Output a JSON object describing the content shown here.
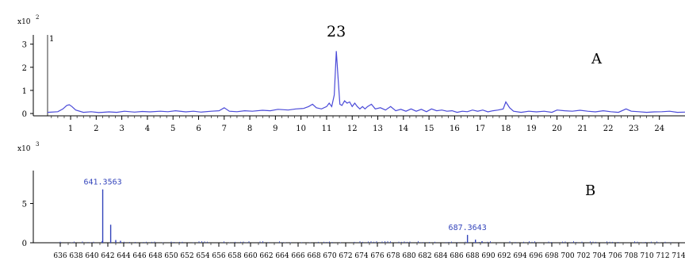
{
  "chart_data": [
    {
      "type": "line",
      "panel_label": "A",
      "peak_annotation": "23",
      "axis_multiplier": {
        "base": "x10",
        "exp": "2"
      },
      "y_ticks": [
        "0",
        "1",
        "2",
        "3"
      ],
      "y_side_tick": "1",
      "x_ticks": [
        "1",
        "2",
        "3",
        "4",
        "5",
        "6",
        "7",
        "8",
        "9",
        "10",
        "11",
        "12",
        "13",
        "14",
        "15",
        "16",
        "17",
        "18",
        "19",
        "20",
        "21",
        "22",
        "23",
        "24"
      ],
      "xlim": [
        0.1,
        25
      ],
      "ylim": [
        -0.1,
        3.4
      ],
      "line_color": "#4a4ad8",
      "series": [
        {
          "x": [
            0.1,
            0.5,
            0.7,
            0.85,
            0.95,
            1.05,
            1.2,
            1.5,
            1.8,
            2.1,
            2.5,
            2.8,
            3.1,
            3.5,
            3.8,
            4.1,
            4.5,
            4.8,
            5.1,
            5.5,
            5.8,
            6.1,
            6.5,
            6.8,
            7.0,
            7.2,
            7.5,
            7.8,
            8.1,
            8.5,
            8.8,
            9.1,
            9.5,
            9.8,
            10.1,
            10.3,
            10.45,
            10.6,
            10.8,
            11.0,
            11.1,
            11.2,
            11.3,
            11.38,
            11.45,
            11.52,
            11.6,
            11.7,
            11.8,
            11.9,
            12.0,
            12.1,
            12.2,
            12.3,
            12.4,
            12.5,
            12.6,
            12.75,
            12.9,
            13.1,
            13.3,
            13.5,
            13.7,
            13.9,
            14.1,
            14.3,
            14.5,
            14.7,
            14.9,
            15.1,
            15.3,
            15.5,
            15.7,
            15.9,
            16.1,
            16.3,
            16.5,
            16.7,
            16.9,
            17.1,
            17.3,
            17.5,
            17.7,
            17.9,
            18.0,
            18.15,
            18.3,
            18.6,
            18.9,
            19.2,
            19.5,
            19.8,
            20.0,
            20.3,
            20.6,
            20.9,
            21.2,
            21.5,
            21.8,
            22.1,
            22.4,
            22.7,
            22.9,
            23.2,
            23.5,
            23.8,
            24.1,
            24.4,
            24.7,
            25.0
          ],
          "y": [
            0.05,
            0.08,
            0.2,
            0.35,
            0.38,
            0.3,
            0.15,
            0.05,
            0.08,
            0.04,
            0.07,
            0.05,
            0.1,
            0.06,
            0.09,
            0.07,
            0.1,
            0.08,
            0.12,
            0.07,
            0.1,
            0.06,
            0.1,
            0.12,
            0.25,
            0.1,
            0.08,
            0.12,
            0.1,
            0.14,
            0.12,
            0.18,
            0.15,
            0.2,
            0.22,
            0.3,
            0.4,
            0.25,
            0.2,
            0.3,
            0.45,
            0.3,
            0.8,
            2.7,
            1.5,
            0.4,
            0.35,
            0.55,
            0.45,
            0.5,
            0.3,
            0.45,
            0.3,
            0.2,
            0.3,
            0.2,
            0.3,
            0.4,
            0.2,
            0.25,
            0.15,
            0.3,
            0.12,
            0.18,
            0.1,
            0.2,
            0.1,
            0.18,
            0.08,
            0.2,
            0.12,
            0.15,
            0.1,
            0.12,
            0.05,
            0.1,
            0.08,
            0.15,
            0.1,
            0.15,
            0.07,
            0.12,
            0.15,
            0.2,
            0.5,
            0.25,
            0.1,
            0.05,
            0.1,
            0.07,
            0.1,
            0.05,
            0.15,
            0.12,
            0.1,
            0.14,
            0.1,
            0.07,
            0.12,
            0.08,
            0.05,
            0.2,
            0.1,
            0.08,
            0.05,
            0.07,
            0.08,
            0.1,
            0.05,
            0.06
          ]
        }
      ]
    },
    {
      "type": "bar",
      "panel_label": "B",
      "axis_multiplier": {
        "base": "x10",
        "exp": "3"
      },
      "y_ticks": [
        "0",
        "5"
      ],
      "x_ticks": [
        "636",
        "638",
        "640",
        "642",
        "644",
        "646",
        "648",
        "650",
        "652",
        "654",
        "656",
        "658",
        "660",
        "662",
        "664",
        "666",
        "668",
        "670",
        "672",
        "674",
        "676",
        "678",
        "680",
        "682",
        "684",
        "686",
        "688",
        "690",
        "692",
        "694",
        "696",
        "698",
        "700",
        "702",
        "704",
        "706",
        "708",
        "710",
        "712",
        "714"
      ],
      "xlim": [
        634.8,
        714.8
      ],
      "ylim": [
        0,
        9.5
      ],
      "bar_color": "#3344bb",
      "peaks": [
        {
          "mz": 641.3563,
          "intensity": 6.8,
          "label": "641.3563"
        },
        {
          "mz": 642.36,
          "intensity": 2.3
        },
        {
          "mz": 643.0,
          "intensity": 0.35
        },
        {
          "mz": 643.6,
          "intensity": 0.25
        },
        {
          "mz": 687.3643,
          "intensity": 1.0,
          "label": "687.3643"
        },
        {
          "mz": 688.37,
          "intensity": 0.4
        },
        {
          "mz": 689.2,
          "intensity": 0.2
        }
      ]
    }
  ]
}
